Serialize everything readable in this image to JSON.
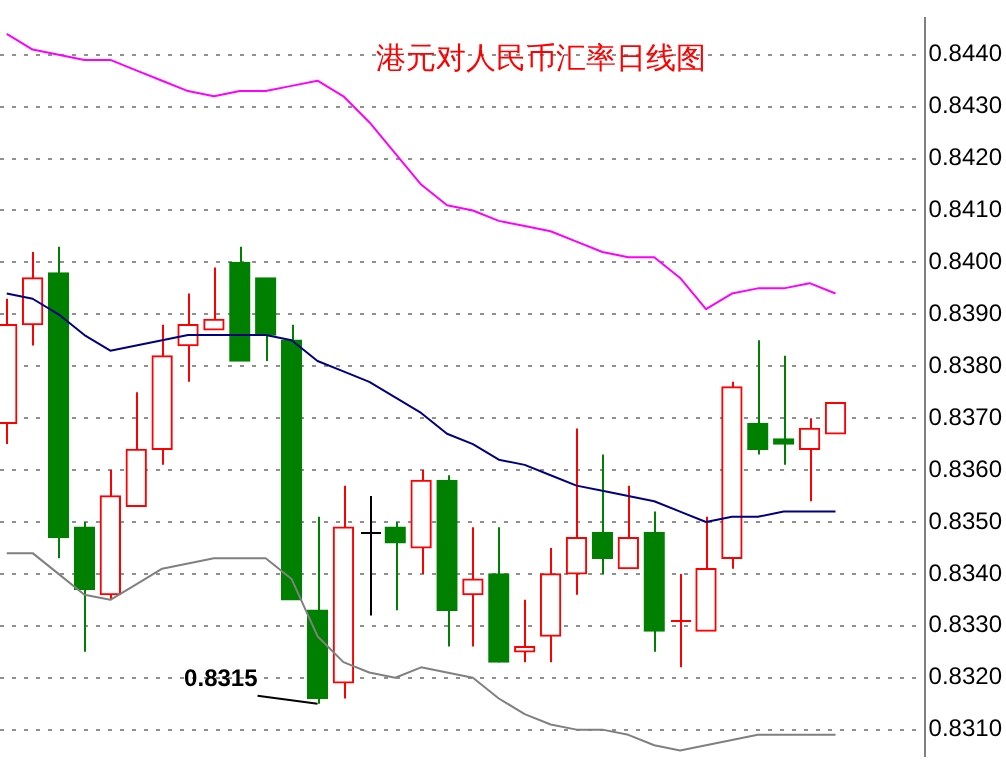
{
  "chart_data": {
    "type": "candlestick",
    "title": "港元对人民币汇率日线图",
    "categories": [
      null,
      null,
      null,
      null,
      null,
      null,
      null,
      null,
      null,
      null,
      null,
      null,
      null,
      null,
      null,
      null,
      null,
      null,
      null,
      null,
      null,
      null,
      null,
      null,
      null,
      null,
      null,
      null,
      null,
      null,
      null,
      null,
      null
    ],
    "ohlc": [
      [
        0.8369,
        0.8393,
        0.8365,
        0.8388
      ],
      [
        0.8388,
        0.8402,
        0.8384,
        0.8397
      ],
      [
        0.8398,
        0.8403,
        0.8343,
        0.8347
      ],
      [
        0.8349,
        0.835,
        0.8325,
        0.8337
      ],
      [
        0.8336,
        0.836,
        0.8335,
        0.8355
      ],
      [
        0.8353,
        0.8375,
        0.8353,
        0.8364
      ],
      [
        0.8364,
        0.8388,
        0.8361,
        0.8382
      ],
      [
        0.8384,
        0.8394,
        0.8377,
        0.8388
      ],
      [
        0.8387,
        0.8399,
        0.8387,
        0.8389
      ],
      [
        0.84,
        0.8403,
        0.8381,
        0.8381
      ],
      [
        0.8397,
        0.8397,
        0.8381,
        0.8386
      ],
      [
        0.8385,
        0.8388,
        0.8335,
        0.8335
      ],
      [
        0.8333,
        0.8351,
        0.8315,
        0.8316
      ],
      [
        0.8319,
        0.8357,
        0.8316,
        0.8349
      ],
      [
        0.8348,
        0.8355,
        0.8332,
        0.8348
      ],
      [
        0.8349,
        0.835,
        0.8333,
        0.8346
      ],
      [
        0.8345,
        0.836,
        0.834,
        0.8358
      ],
      [
        0.8358,
        0.8359,
        0.8326,
        0.8333
      ],
      [
        0.8336,
        0.8349,
        0.8326,
        0.8339
      ],
      [
        0.834,
        0.8349,
        0.8323,
        0.8323
      ],
      [
        0.8325,
        0.8335,
        0.8323,
        0.8326
      ],
      [
        0.8328,
        0.8345,
        0.8323,
        0.834
      ],
      [
        0.834,
        0.8368,
        0.8336,
        0.8347
      ],
      [
        0.8348,
        0.8363,
        0.834,
        0.8343
      ],
      [
        0.8341,
        0.8357,
        0.8341,
        0.8347
      ],
      [
        0.8348,
        0.8352,
        0.8325,
        0.8329
      ],
      [
        0.8331,
        0.834,
        0.8322,
        0.8331
      ],
      [
        0.8329,
        0.8351,
        0.8329,
        0.8341
      ],
      [
        0.8343,
        0.8377,
        0.8341,
        0.8376
      ],
      [
        0.8369,
        0.8385,
        0.8363,
        0.8364
      ],
      [
        0.8366,
        0.8382,
        0.8361,
        0.8365
      ],
      [
        0.8364,
        0.837,
        0.8354,
        0.8368
      ],
      [
        0.8367,
        0.8373,
        0.8367,
        0.8373
      ]
    ],
    "colors": [
      "#ff0000",
      "#ff0000",
      "#008000",
      "#008000",
      "#ff0000",
      "#ff0000",
      "#ff0000",
      "#ff0000",
      "#ff0000",
      "#008000",
      "#008000",
      "#008000",
      "#008000",
      "#ff0000",
      "#000000",
      "#008000",
      "#ff0000",
      "#008000",
      "#ff0000",
      "#008000",
      "#ff0000",
      "#ff0000",
      "#ff0000",
      "#008000",
      "#ff0000",
      "#008000",
      "#ff0000",
      "#ff0000",
      "#ff0000",
      "#008000",
      "#008000",
      "#ff0000",
      "#ff0000"
    ],
    "series": [
      {
        "type": "line",
        "color": "#ff00ff",
        "values": [
          0.8444,
          0.8441,
          0.844,
          0.8439,
          0.8439,
          0.8437,
          0.8435,
          0.8433,
          0.8432,
          0.8433,
          0.8433,
          0.8434,
          0.8435,
          0.8432,
          0.8427,
          0.8421,
          0.8415,
          0.8411,
          0.841,
          0.8408,
          0.8407,
          0.8406,
          0.8404,
          0.8402,
          0.8401,
          0.8401,
          0.8397,
          0.8391,
          0.8394,
          0.8395,
          0.8395,
          0.8396,
          0.8394
        ]
      },
      {
        "type": "line",
        "color": "#000080",
        "values": [
          0.8394,
          0.8393,
          0.839,
          0.8386,
          0.8383,
          0.8384,
          0.8385,
          0.8386,
          0.8386,
          0.8386,
          0.8386,
          0.8385,
          0.8381,
          0.8379,
          0.8377,
          0.8374,
          0.8371,
          0.8367,
          0.8365,
          0.8362,
          0.8361,
          0.8359,
          0.8357,
          0.8356,
          0.8355,
          0.8354,
          0.8352,
          0.835,
          0.8351,
          0.8351,
          0.8352,
          0.8352,
          0.8352
        ]
      },
      {
        "type": "line",
        "color": "#808080",
        "values": [
          0.8344,
          0.8344,
          0.834,
          0.8336,
          0.8335,
          0.8338,
          0.8341,
          0.8342,
          0.8343,
          0.8343,
          0.8343,
          0.8339,
          0.8328,
          0.8323,
          0.8321,
          0.832,
          0.8322,
          0.8321,
          0.832,
          0.8316,
          0.8313,
          0.8311,
          0.831,
          0.831,
          0.8309,
          0.8307,
          0.8306,
          0.8307,
          0.8308,
          0.8309,
          0.8309,
          0.8309,
          0.8309
        ]
      }
    ],
    "annotations": [
      "0.8315"
    ],
    "ylim": [
      0.8305,
      0.8447
    ],
    "yticks": [
      {
        "value": 0.831,
        "label": "0.8310"
      },
      {
        "value": 0.832,
        "label": "0.8320"
      },
      {
        "value": 0.833,
        "label": "0.8330"
      },
      {
        "value": 0.834,
        "label": "0.8340"
      },
      {
        "value": 0.835,
        "label": "0.8350"
      },
      {
        "value": 0.836,
        "label": "0.8360"
      },
      {
        "value": 0.837,
        "label": "0.8370"
      },
      {
        "value": 0.838,
        "label": "0.8380"
      },
      {
        "value": 0.839,
        "label": "0.8390"
      },
      {
        "value": 0.84,
        "label": "0.8400"
      },
      {
        "value": 0.841,
        "label": "0.8410"
      },
      {
        "value": 0.842,
        "label": "0.8420"
      },
      {
        "value": 0.843,
        "label": "0.8430"
      },
      {
        "value": 0.844,
        "label": "0.8440"
      }
    ],
    "grid": "y",
    "tick_labels": "y"
  }
}
